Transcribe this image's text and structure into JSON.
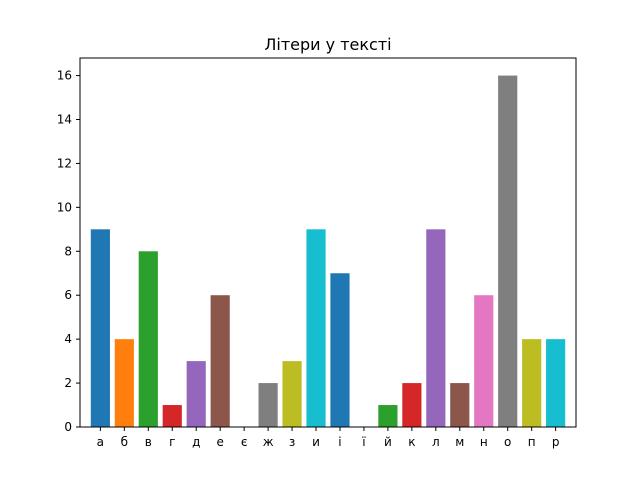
{
  "chart_data": {
    "type": "bar",
    "title": "Літери у тексті",
    "xlabel": "",
    "ylabel": "",
    "categories": [
      "а",
      "б",
      "в",
      "г",
      "д",
      "е",
      "є",
      "ж",
      "з",
      "и",
      "і",
      "ї",
      "й",
      "к",
      "л",
      "м",
      "н",
      "о",
      "п",
      "р"
    ],
    "values": [
      9,
      4,
      8,
      1,
      3,
      6,
      0,
      2,
      3,
      9,
      7,
      0,
      1,
      2,
      9,
      2,
      6,
      16,
      4,
      4
    ],
    "colors": [
      "#1f77b4",
      "#ff7f0e",
      "#2ca02c",
      "#d62728",
      "#9467bd",
      "#8c564b",
      "#e377c2",
      "#7f7f7f",
      "#bcbd22",
      "#17becf",
      "#1f77b4",
      "#ff7f0e",
      "#2ca02c",
      "#d62728",
      "#9467bd",
      "#8c564b",
      "#e377c2",
      "#7f7f7f",
      "#bcbd22",
      "#17becf"
    ],
    "ylim": [
      0,
      16.8
    ],
    "yticks": [
      0,
      2,
      4,
      6,
      8,
      10,
      12,
      14,
      16
    ],
    "grid": false,
    "legend": "none"
  }
}
